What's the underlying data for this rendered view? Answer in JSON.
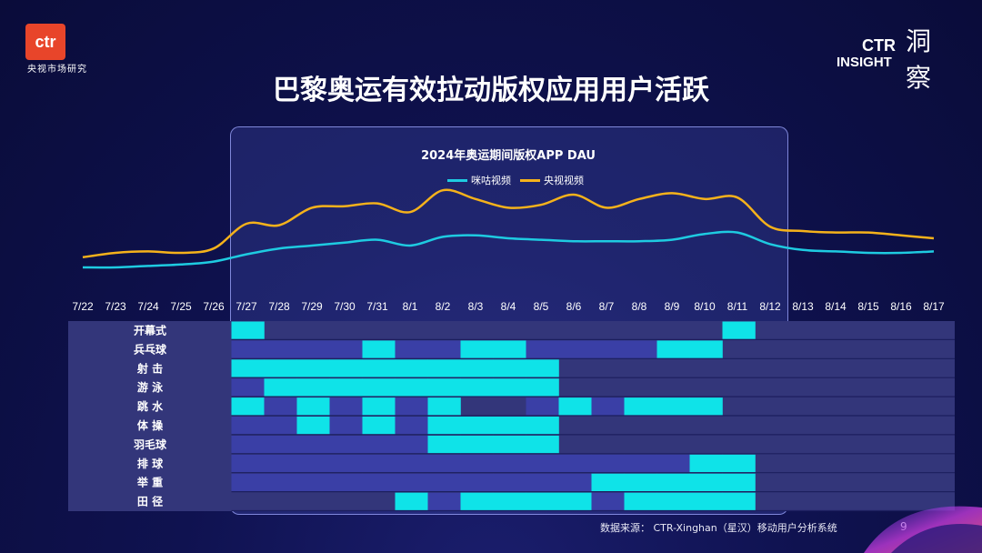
{
  "brand": {
    "logo_text": "ctr",
    "logo_sub": "央视市场研究",
    "insight_line1": "CTR",
    "insight_line2": "INSIGHT",
    "insight_char": "洞察"
  },
  "title": "巴黎奥运有效拉动版权应用用户活跃",
  "colors": {
    "migu": "#1ecbe1",
    "cctv": "#f5b21b",
    "grid_active": "#0fe3e8",
    "grid_inactive": "#3a3fa6"
  },
  "chart_data": {
    "type": "line",
    "title": "2024年奥运期间版权APP DAU",
    "categories": [
      "7/22",
      "7/23",
      "7/24",
      "7/25",
      "7/26",
      "7/27",
      "7/28",
      "7/29",
      "7/30",
      "7/31",
      "8/1",
      "8/2",
      "8/3",
      "8/4",
      "8/5",
      "8/6",
      "8/7",
      "8/8",
      "8/9",
      "8/10",
      "8/11",
      "8/12",
      "8/13",
      "8/14",
      "8/15",
      "8/16",
      "8/17"
    ],
    "series": [
      {
        "name": "咪咕视频",
        "values": [
          10,
          10,
          11,
          12,
          14,
          19,
          23,
          25,
          27,
          29,
          25,
          31,
          32,
          30,
          29,
          28,
          28,
          28,
          29,
          33,
          34,
          26,
          22,
          21,
          20,
          20,
          21
        ]
      },
      {
        "name": "央视视频",
        "values": [
          17,
          20,
          21,
          20,
          23,
          40,
          39,
          51,
          52,
          54,
          48,
          63,
          57,
          51,
          53,
          60,
          51,
          57,
          61,
          57,
          58,
          38,
          35,
          34,
          34,
          32,
          30
        ]
      }
    ],
    "ylim": [
      0,
      75
    ],
    "grid": false,
    "legend_position": "top-center"
  },
  "schedule": {
    "sports": [
      "开幕式",
      "兵乓球",
      "射  击",
      "游  泳",
      "跳  水",
      "体  操",
      "羽毛球",
      "排  球",
      "举  重",
      "田  径"
    ],
    "cells": [
      [
        1,
        0,
        0,
        0,
        0,
        0,
        0,
        0,
        0,
        0,
        0,
        0,
        0,
        0,
        0,
        1
      ],
      [
        2,
        2,
        2,
        2,
        1,
        2,
        2,
        1,
        1,
        2,
        2,
        2,
        2,
        1,
        1,
        0
      ],
      [
        1,
        1,
        1,
        1,
        1,
        1,
        1,
        1,
        1,
        1,
        0,
        0,
        0,
        0,
        0,
        0
      ],
      [
        2,
        1,
        1,
        1,
        1,
        1,
        1,
        1,
        1,
        1,
        0,
        0,
        0,
        0,
        0,
        0
      ],
      [
        1,
        2,
        1,
        2,
        1,
        2,
        1,
        0,
        0,
        2,
        1,
        2,
        1,
        1,
        1,
        0
      ],
      [
        2,
        2,
        1,
        2,
        1,
        2,
        1,
        1,
        1,
        1,
        0,
        0,
        0,
        0,
        0,
        0
      ],
      [
        2,
        2,
        2,
        2,
        2,
        2,
        1,
        1,
        1,
        1,
        0,
        0,
        0,
        0,
        0,
        0
      ],
      [
        2,
        2,
        2,
        2,
        2,
        2,
        2,
        2,
        2,
        2,
        2,
        2,
        2,
        2,
        1,
        1
      ],
      [
        2,
        2,
        2,
        2,
        2,
        2,
        2,
        2,
        2,
        2,
        2,
        1,
        1,
        1,
        1,
        1
      ],
      [
        0,
        0,
        0,
        0,
        0,
        1,
        2,
        1,
        1,
        1,
        1,
        2,
        1,
        1,
        1,
        1
      ]
    ]
  },
  "footer": {
    "source": "数据来源：  CTR-Xinghan（星汉）移动用户分析系统",
    "page": "9"
  }
}
